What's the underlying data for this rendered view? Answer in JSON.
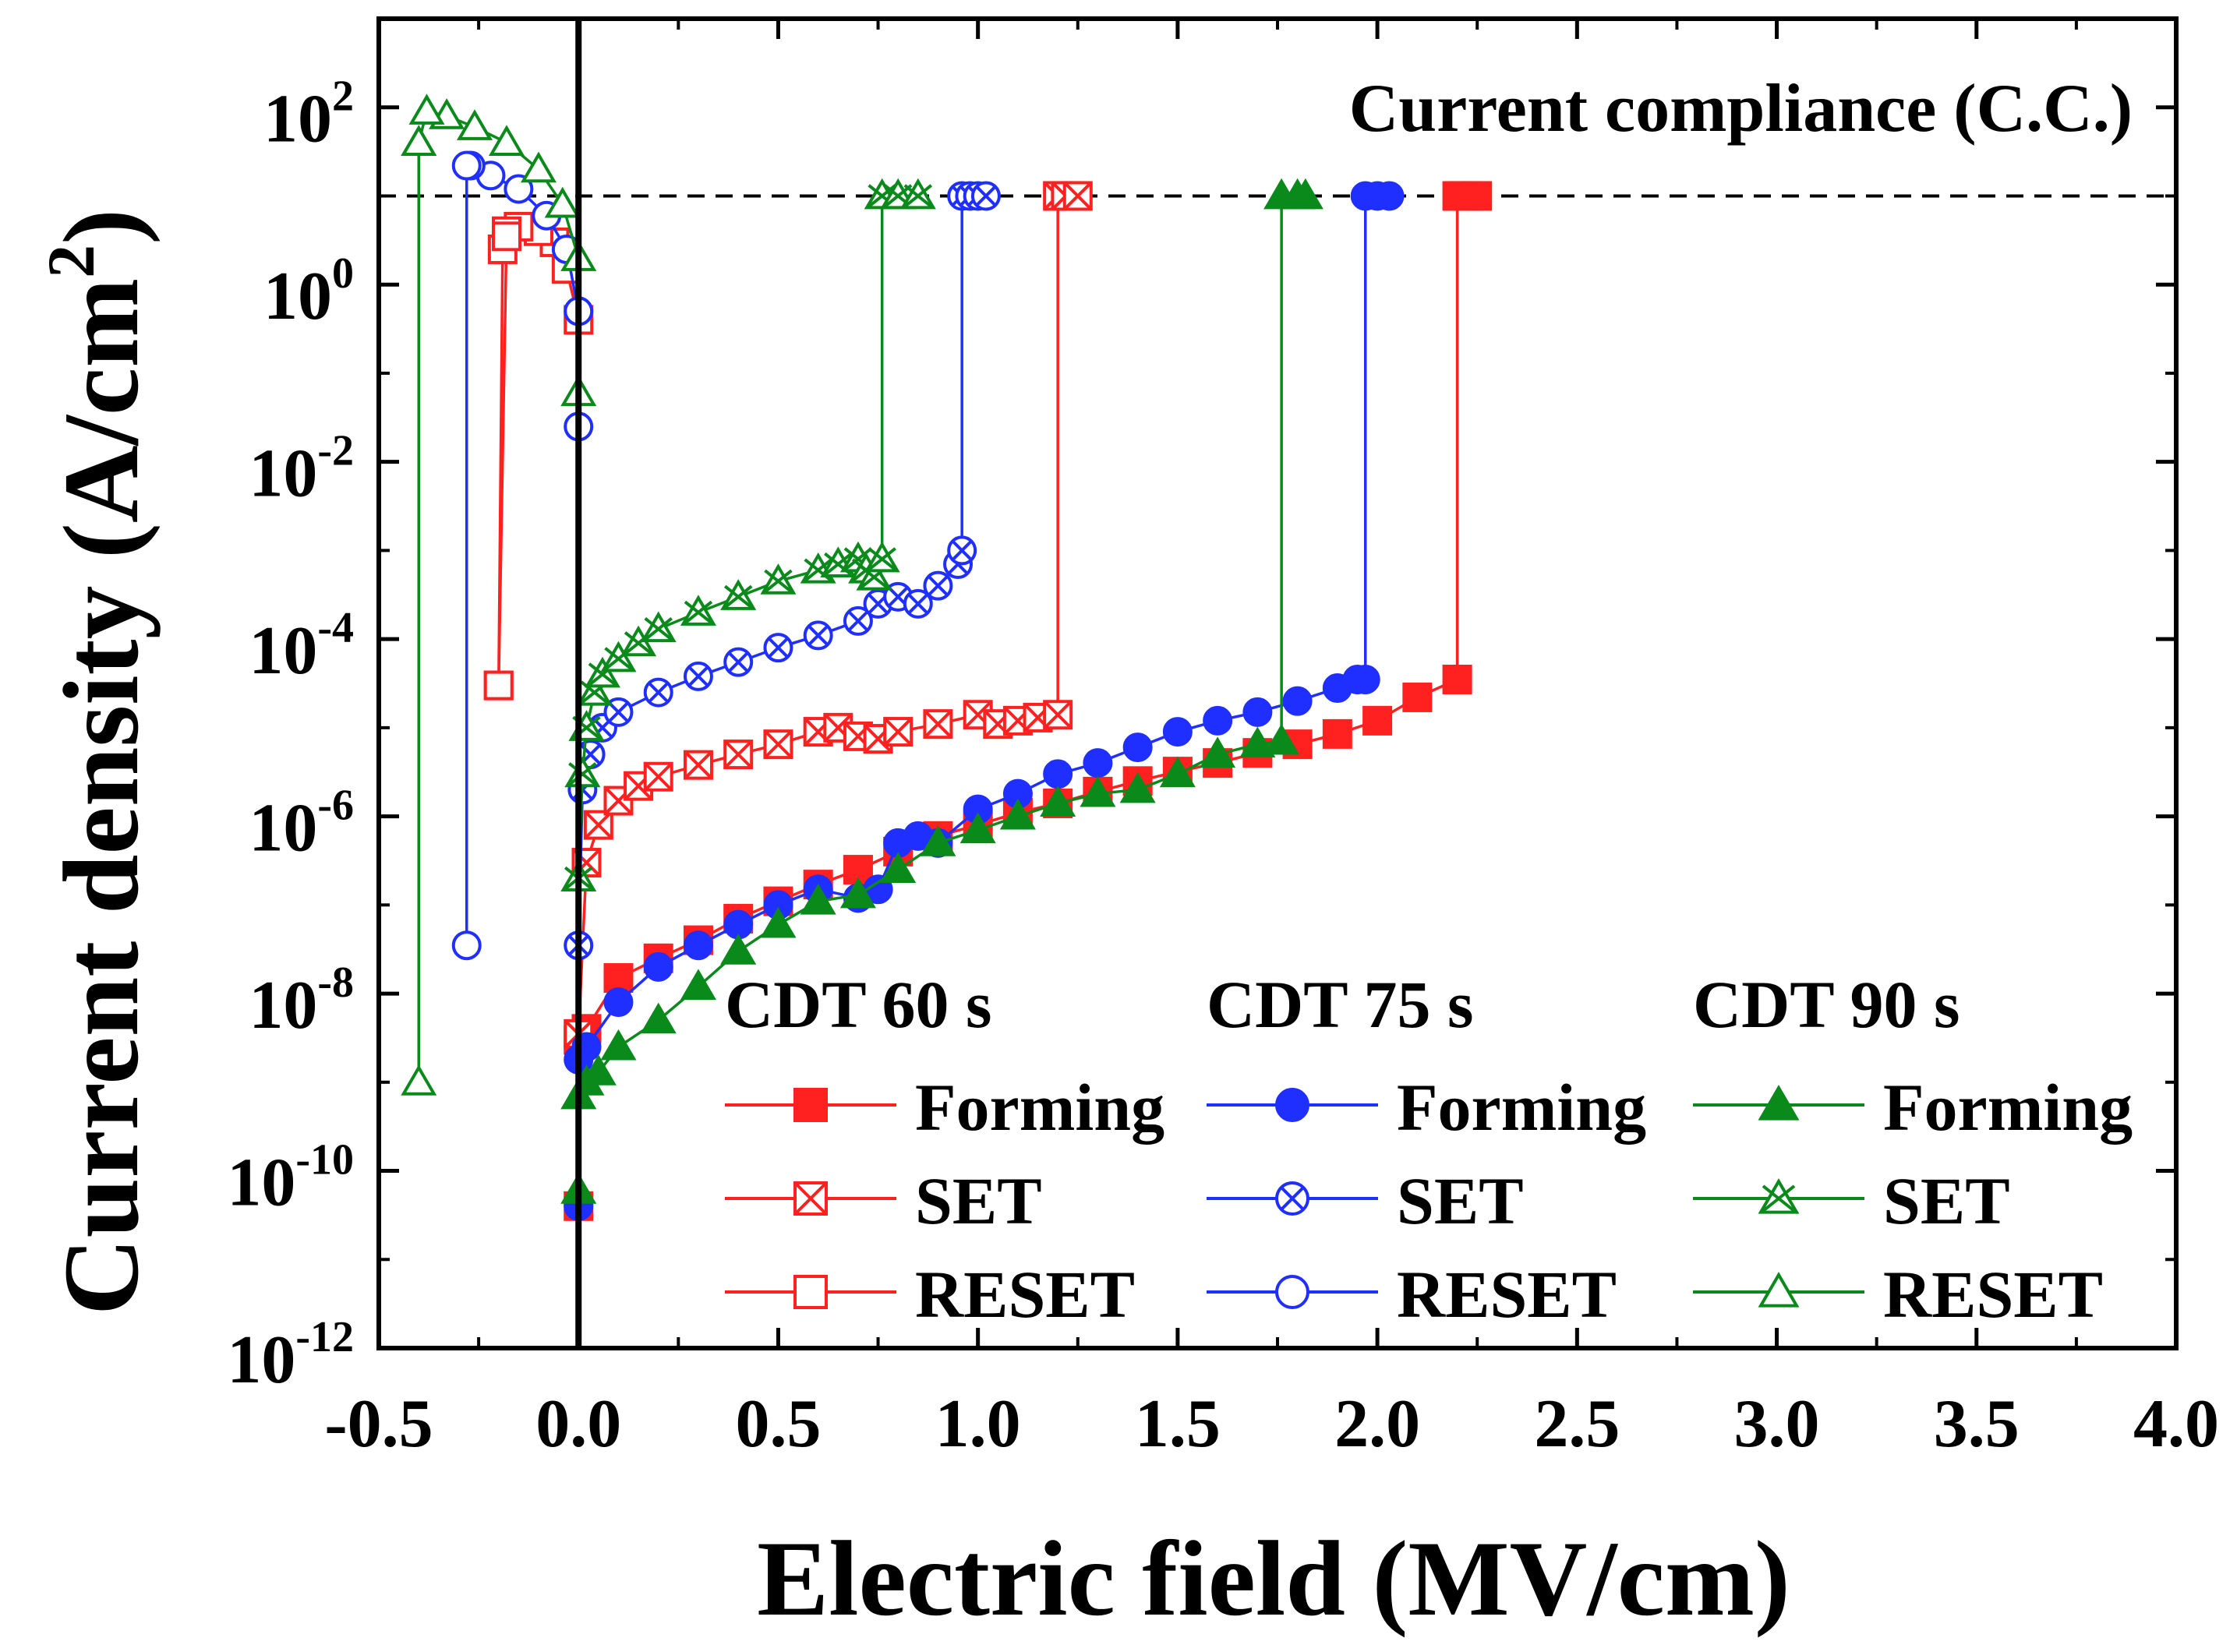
{
  "chart_data": {
    "type": "line",
    "title": "",
    "xlabel": "Electric field (MV/cm)",
    "ylabel_main": "Current density (A/cm",
    "ylabel_sup": "2",
    "ylabel_close": ")",
    "xlim": [
      -0.5,
      4.0
    ],
    "ylim_log10": [
      -12,
      3
    ],
    "y_scale": "log",
    "x_ticks": [
      {
        "value": -0.5,
        "label": "-0.5"
      },
      {
        "value": 0.0,
        "label": "0.0"
      },
      {
        "value": 0.5,
        "label": "0.5"
      },
      {
        "value": 1.0,
        "label": "1.0"
      },
      {
        "value": 1.5,
        "label": "1.5"
      },
      {
        "value": 2.0,
        "label": "2.0"
      },
      {
        "value": 2.5,
        "label": "2.5"
      },
      {
        "value": 3.0,
        "label": "3.0"
      },
      {
        "value": 3.5,
        "label": "3.5"
      },
      {
        "value": 4.0,
        "label": "4.0"
      }
    ],
    "y_ticks": [
      {
        "exp": 2,
        "base": "10",
        "sup": "2"
      },
      {
        "exp": 0,
        "base": "10",
        "sup": "0"
      },
      {
        "exp": -2,
        "base": "10",
        "sup": "-2"
      },
      {
        "exp": -4,
        "base": "10",
        "sup": "-4"
      },
      {
        "exp": -6,
        "base": "10",
        "sup": "-6"
      },
      {
        "exp": -8,
        "base": "10",
        "sup": "-8"
      },
      {
        "exp": -10,
        "base": "10",
        "sup": "-10"
      },
      {
        "exp": -12,
        "base": "10",
        "sup": "-12"
      }
    ],
    "compliance": {
      "label": "Current compliance (C.C.)",
      "value": 10
    },
    "zero_line_x": 0.0,
    "legend": {
      "placement": "bottom-right",
      "groups": [
        {
          "title": "CDT 60 s",
          "color": "#ff2020"
        },
        {
          "title": "CDT 75 s",
          "color": "#1f2fff"
        },
        {
          "title": "CDT 90 s",
          "color": "#0a8a1a"
        }
      ],
      "entries": [
        "Forming",
        "SET",
        "RESET"
      ]
    },
    "series": [
      {
        "name": "CDT 60 s Forming",
        "color": "#ff2020",
        "marker": "square-filled",
        "x": [
          0.0,
          0.0,
          0.02,
          0.1,
          0.2,
          0.3,
          0.4,
          0.5,
          0.6,
          0.7,
          0.8,
          0.9,
          1.0,
          1.1,
          1.2,
          1.3,
          1.4,
          1.5,
          1.6,
          1.7,
          1.8,
          1.9,
          2.0,
          2.1,
          2.2,
          2.2,
          2.22,
          2.25
        ],
        "y": [
          4e-11,
          3e-09,
          4e-09,
          1.5e-08,
          2.5e-08,
          4e-08,
          7e-08,
          1.1e-07,
          1.7e-07,
          2.5e-07,
          4e-07,
          6e-07,
          8e-07,
          1.1e-06,
          1.4e-06,
          1.9e-06,
          2.5e-06,
          3.2e-06,
          4e-06,
          5.2e-06,
          6.5e-06,
          8.5e-06,
          1.2e-05,
          2.2e-05,
          3.5e-05,
          10,
          10,
          10
        ]
      },
      {
        "name": "CDT 60 s SET",
        "color": "#ff2020",
        "marker": "square-x",
        "x": [
          0.0,
          0.02,
          0.05,
          0.1,
          0.15,
          0.2,
          0.3,
          0.4,
          0.5,
          0.6,
          0.65,
          0.7,
          0.75,
          0.8,
          0.9,
          1.0,
          1.05,
          1.1,
          1.15,
          1.2,
          1.2,
          1.22,
          1.25
        ],
        "y": [
          3.5e-09,
          3e-07,
          8e-07,
          1.5e-06,
          2.2e-06,
          2.8e-06,
          3.8e-06,
          5e-06,
          6.5e-06,
          9e-06,
          1e-05,
          8e-06,
          7.5e-06,
          9e-06,
          1.1e-05,
          1.4e-05,
          1.1e-05,
          1.2e-05,
          1.3e-05,
          1.4e-05,
          10,
          10,
          10
        ]
      },
      {
        "name": "CDT 60 s RESET",
        "color": "#ff2020",
        "marker": "square-open",
        "x": [
          0.0,
          -0.03,
          -0.06,
          -0.1,
          -0.15,
          -0.18,
          -0.2,
          -0.2,
          -0.19,
          -0.18
        ],
        "y": [
          0.4,
          1.5,
          3,
          4,
          4.5,
          4,
          3e-05,
          3e-05,
          2.5,
          3.5
        ]
      },
      {
        "name": "CDT 75 s Forming",
        "color": "#1f2fff",
        "marker": "circle-filled",
        "x": [
          0.0,
          0.0,
          0.02,
          0.1,
          0.2,
          0.3,
          0.4,
          0.5,
          0.6,
          0.7,
          0.75,
          0.8,
          0.85,
          0.9,
          1.0,
          1.1,
          1.2,
          1.3,
          1.4,
          1.5,
          1.6,
          1.7,
          1.8,
          1.9,
          1.95,
          1.97,
          1.97,
          2.0,
          2.03
        ],
        "y": [
          4e-11,
          1.8e-09,
          2.5e-09,
          8e-09,
          2e-08,
          3.5e-08,
          6e-08,
          1e-07,
          1.5e-07,
          1.2e-07,
          1.5e-07,
          5e-07,
          6e-07,
          5e-07,
          1.2e-06,
          1.8e-06,
          3e-06,
          4e-06,
          6e-06,
          9e-06,
          1.2e-05,
          1.5e-05,
          2e-05,
          2.8e-05,
          3.5e-05,
          3.5e-05,
          10,
          10,
          10
        ]
      },
      {
        "name": "CDT 75 s SET",
        "color": "#1f2fff",
        "marker": "circle-x",
        "x": [
          0.0,
          0.01,
          0.03,
          0.06,
          0.1,
          0.2,
          0.3,
          0.4,
          0.5,
          0.6,
          0.7,
          0.75,
          0.8,
          0.85,
          0.9,
          0.95,
          0.96,
          0.96,
          0.98,
          1.0,
          1.02
        ],
        "y": [
          3.5e-08,
          2e-06,
          5e-06,
          1e-05,
          1.5e-05,
          2.5e-05,
          3.8e-05,
          5.5e-05,
          8e-05,
          0.00011,
          0.00016,
          0.00025,
          0.0003,
          0.00025,
          0.0004,
          0.0007,
          0.001,
          10,
          10,
          10,
          10
        ]
      },
      {
        "name": "CDT 75 s RESET",
        "color": "#1f2fff",
        "marker": "circle-open",
        "x": [
          0.0,
          0.0,
          -0.03,
          -0.08,
          -0.15,
          -0.22,
          -0.27,
          -0.28,
          -0.28
        ],
        "y": [
          0.025,
          0.5,
          2.5,
          6,
          12,
          17,
          22,
          22,
          3.5e-08
        ]
      },
      {
        "name": "CDT 90 s Forming",
        "color": "#0a8a1a",
        "marker": "triangle-filled",
        "x": [
          0.0,
          0.0,
          0.02,
          0.05,
          0.1,
          0.2,
          0.3,
          0.4,
          0.5,
          0.6,
          0.7,
          0.8,
          0.9,
          1.0,
          1.1,
          1.2,
          1.3,
          1.4,
          1.5,
          1.6,
          1.7,
          1.76,
          1.76,
          1.8,
          1.82
        ],
        "y": [
          6e-11,
          7e-10,
          1e-09,
          1.3e-09,
          2.5e-09,
          5e-09,
          1.2e-08,
          3e-08,
          6e-08,
          1.1e-07,
          1.3e-07,
          2.5e-07,
          5e-07,
          7e-07,
          1e-06,
          1.4e-06,
          1.8e-06,
          2e-06,
          3e-06,
          5e-06,
          6.5e-06,
          7e-06,
          10,
          10,
          10
        ]
      },
      {
        "name": "CDT 90 s SET",
        "color": "#0a8a1a",
        "marker": "triangle-x",
        "x": [
          0.0,
          0.01,
          0.02,
          0.04,
          0.06,
          0.1,
          0.15,
          0.2,
          0.3,
          0.4,
          0.5,
          0.6,
          0.65,
          0.7,
          0.72,
          0.74,
          0.76,
          0.76,
          0.8,
          0.85
        ],
        "y": [
          2e-07,
          3e-06,
          1e-05,
          2.5e-05,
          4e-05,
          6e-05,
          9e-05,
          0.00013,
          0.0002,
          0.0003,
          0.00045,
          0.0006,
          0.0007,
          0.0008,
          0.0006,
          0.0005,
          0.0008,
          10,
          10,
          10
        ]
      },
      {
        "name": "CDT 90 s RESET",
        "color": "#0a8a1a",
        "marker": "triangle-open",
        "x": [
          0.0,
          0.0,
          -0.04,
          -0.1,
          -0.18,
          -0.26,
          -0.33,
          -0.38,
          -0.4,
          -0.4,
          -0.4
        ],
        "y": [
          0.06,
          2,
          8,
          20,
          40,
          60,
          80,
          90,
          40,
          40,
          1e-09
        ]
      }
    ]
  }
}
